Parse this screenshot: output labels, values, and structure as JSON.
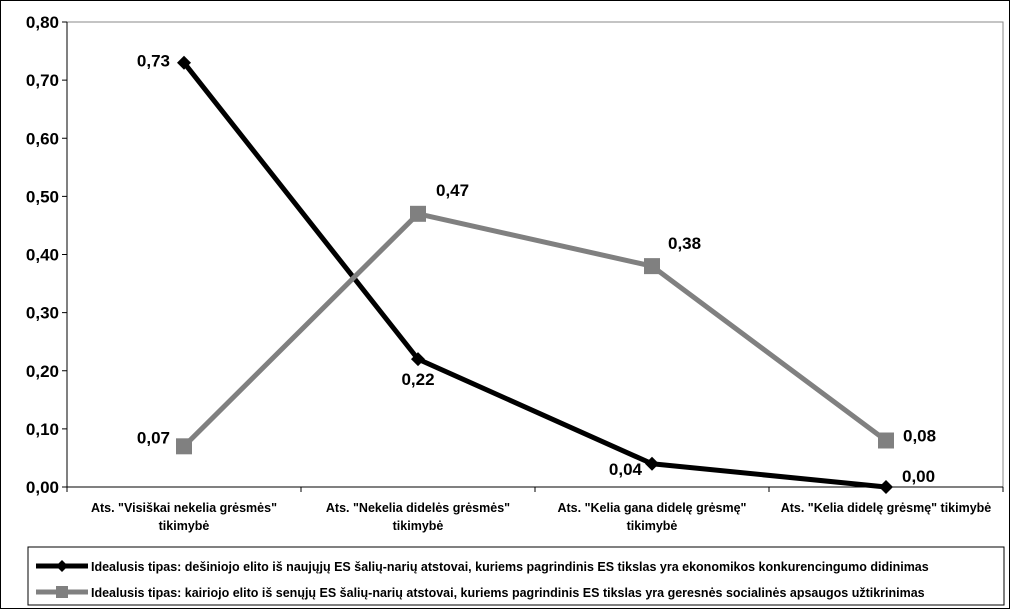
{
  "chart_data": {
    "type": "line",
    "categories": [
      [
        "Ats. \"Visiškai nekelia grėsmės\"",
        "tikimybė"
      ],
      [
        "Ats. \"Nekelia didelės grėsmės\"",
        "tikimybė"
      ],
      [
        "Ats. \"Kelia gana didelę grėsmę\"",
        "tikimybė"
      ],
      [
        "Ats. \"Kelia didelę grėsmę\" tikimybė"
      ]
    ],
    "ylim": [
      0,
      0.8
    ],
    "yticks": [
      {
        "value": 0.0,
        "label": "0,00"
      },
      {
        "value": 0.1,
        "label": "0,10"
      },
      {
        "value": 0.2,
        "label": "0,20"
      },
      {
        "value": 0.3,
        "label": "0,30"
      },
      {
        "value": 0.4,
        "label": "0,40"
      },
      {
        "value": 0.5,
        "label": "0,50"
      },
      {
        "value": 0.6,
        "label": "0,60"
      },
      {
        "value": 0.7,
        "label": "0,70"
      },
      {
        "value": 0.8,
        "label": "0,80"
      }
    ],
    "grid": false,
    "legend_position": "bottom",
    "series": [
      {
        "name": "Idealusis tipas: dešiniojo elito iš naujųjų ES šalių-narių atstovai, kuriems pagrindinis ES tikslas yra ekonomikos konkurencingumo didinimas",
        "values": [
          0.73,
          0.22,
          0.04,
          0.0
        ],
        "labels": [
          "0,73",
          "0,22",
          "0,04",
          "0,00"
        ],
        "color": "#000000",
        "marker": "diamond"
      },
      {
        "name": "Idealusis tipas: kairiojo elito iš senųjų ES šalių-narių atstovai, kuriems pagrindinis ES tikslas yra geresnės socialinės apsaugos užtikrinimas",
        "values": [
          0.07,
          0.47,
          0.38,
          0.08
        ],
        "labels": [
          "0,07",
          "0,47",
          "0,38",
          "0,08"
        ],
        "color": "#808080",
        "marker": "square"
      }
    ]
  }
}
